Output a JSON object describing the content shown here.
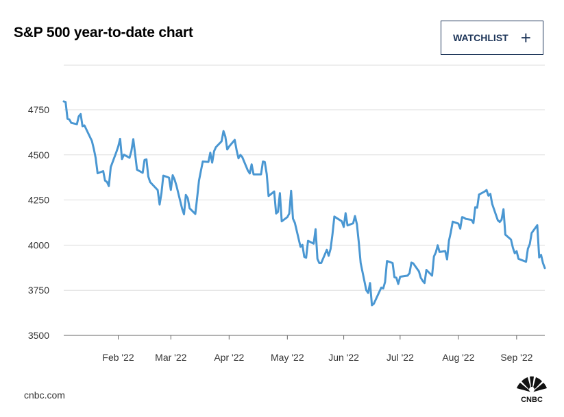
{
  "header": {
    "title": "S&P 500 year-to-date chart",
    "watchlist_label": "WATCHLIST",
    "watchlist_icon": "plus-icon"
  },
  "footer": {
    "source": "cnbc.com",
    "logo_text": "CNBC"
  },
  "colors": {
    "line": "#4a97d2",
    "grid": "#dddddd",
    "axis": "#666666",
    "button_border": "#1c3458"
  },
  "chart_data": {
    "type": "line",
    "title": "S&P 500 year-to-date chart",
    "xlabel": "",
    "ylabel": "",
    "ylim": [
      3500,
      4900
    ],
    "yticks": [
      3500,
      3750,
      4000,
      4250,
      4500,
      4750
    ],
    "grid": true,
    "legend": "none",
    "month_ticks": [
      {
        "label": "Feb '22",
        "date": "2022-02-01"
      },
      {
        "label": "Mar '22",
        "date": "2022-03-01"
      },
      {
        "label": "Apr '22",
        "date": "2022-04-01"
      },
      {
        "label": "May '22",
        "date": "2022-05-02"
      },
      {
        "label": "Jun '22",
        "date": "2022-06-01"
      },
      {
        "label": "Jul '22",
        "date": "2022-07-01"
      },
      {
        "label": "Aug '22",
        "date": "2022-08-01"
      },
      {
        "label": "Sep '22",
        "date": "2022-09-01"
      }
    ],
    "x_range": [
      "2022-01-03",
      "2022-09-16"
    ],
    "series": [
      {
        "points": [
          [
            "2022-01-03",
            4796
          ],
          [
            "2022-01-04",
            4793
          ],
          [
            "2022-01-05",
            4700
          ],
          [
            "2022-01-06",
            4696
          ],
          [
            "2022-01-07",
            4677
          ],
          [
            "2022-01-10",
            4670
          ],
          [
            "2022-01-11",
            4713
          ],
          [
            "2022-01-12",
            4726
          ],
          [
            "2022-01-13",
            4659
          ],
          [
            "2022-01-14",
            4663
          ],
          [
            "2022-01-18",
            4577
          ],
          [
            "2022-01-19",
            4533
          ],
          [
            "2022-01-20",
            4483
          ],
          [
            "2022-01-21",
            4398
          ],
          [
            "2022-01-24",
            4410
          ],
          [
            "2022-01-25",
            4357
          ],
          [
            "2022-01-26",
            4350
          ],
          [
            "2022-01-27",
            4327
          ],
          [
            "2022-01-28",
            4432
          ],
          [
            "2022-01-31",
            4516
          ],
          [
            "2022-02-01",
            4546
          ],
          [
            "2022-02-02",
            4589
          ],
          [
            "2022-02-03",
            4477
          ],
          [
            "2022-02-04",
            4501
          ],
          [
            "2022-02-07",
            4484
          ],
          [
            "2022-02-08",
            4521
          ],
          [
            "2022-02-09",
            4587
          ],
          [
            "2022-02-10",
            4504
          ],
          [
            "2022-02-11",
            4418
          ],
          [
            "2022-02-14",
            4401
          ],
          [
            "2022-02-15",
            4472
          ],
          [
            "2022-02-16",
            4475
          ],
          [
            "2022-02-17",
            4380
          ],
          [
            "2022-02-18",
            4349
          ],
          [
            "2022-02-22",
            4305
          ],
          [
            "2022-02-23",
            4225
          ],
          [
            "2022-02-24",
            4288
          ],
          [
            "2022-02-25",
            4385
          ],
          [
            "2022-02-28",
            4374
          ],
          [
            "2022-03-01",
            4306
          ],
          [
            "2022-03-02",
            4387
          ],
          [
            "2022-03-03",
            4363
          ],
          [
            "2022-03-04",
            4329
          ],
          [
            "2022-03-07",
            4201
          ],
          [
            "2022-03-08",
            4171
          ],
          [
            "2022-03-09",
            4278
          ],
          [
            "2022-03-10",
            4260
          ],
          [
            "2022-03-11",
            4204
          ],
          [
            "2022-03-14",
            4173
          ],
          [
            "2022-03-15",
            4263
          ],
          [
            "2022-03-16",
            4358
          ],
          [
            "2022-03-17",
            4412
          ],
          [
            "2022-03-18",
            4463
          ],
          [
            "2022-03-21",
            4461
          ],
          [
            "2022-03-22",
            4512
          ],
          [
            "2022-03-23",
            4457
          ],
          [
            "2022-03-24",
            4520
          ],
          [
            "2022-03-25",
            4543
          ],
          [
            "2022-03-28",
            4575
          ],
          [
            "2022-03-29",
            4632
          ],
          [
            "2022-03-30",
            4602
          ],
          [
            "2022-03-31",
            4530
          ],
          [
            "2022-04-01",
            4546
          ],
          [
            "2022-04-04",
            4583
          ],
          [
            "2022-04-05",
            4525
          ],
          [
            "2022-04-06",
            4481
          ],
          [
            "2022-04-07",
            4500
          ],
          [
            "2022-04-08",
            4488
          ],
          [
            "2022-04-11",
            4413
          ],
          [
            "2022-04-12",
            4397
          ],
          [
            "2022-04-13",
            4447
          ],
          [
            "2022-04-14",
            4392
          ],
          [
            "2022-04-18",
            4392
          ],
          [
            "2022-04-19",
            4463
          ],
          [
            "2022-04-20",
            4460
          ],
          [
            "2022-04-21",
            4394
          ],
          [
            "2022-04-22",
            4272
          ],
          [
            "2022-04-25",
            4297
          ],
          [
            "2022-04-26",
            4175
          ],
          [
            "2022-04-27",
            4184
          ],
          [
            "2022-04-28",
            4288
          ],
          [
            "2022-04-29",
            4132
          ],
          [
            "2022-05-02",
            4155
          ],
          [
            "2022-05-03",
            4175
          ],
          [
            "2022-05-04",
            4301
          ],
          [
            "2022-05-05",
            4147
          ],
          [
            "2022-05-06",
            4123
          ],
          [
            "2022-05-09",
            3991
          ],
          [
            "2022-05-10",
            4001
          ],
          [
            "2022-05-11",
            3935
          ],
          [
            "2022-05-12",
            3930
          ],
          [
            "2022-05-13",
            4024
          ],
          [
            "2022-05-16",
            4008
          ],
          [
            "2022-05-17",
            4088
          ],
          [
            "2022-05-18",
            3924
          ],
          [
            "2022-05-19",
            3901
          ],
          [
            "2022-05-20",
            3901
          ],
          [
            "2022-05-23",
            3974
          ],
          [
            "2022-05-24",
            3941
          ],
          [
            "2022-05-25",
            3979
          ],
          [
            "2022-05-26",
            4058
          ],
          [
            "2022-05-27",
            4158
          ],
          [
            "2022-05-31",
            4132
          ],
          [
            "2022-06-01",
            4101
          ],
          [
            "2022-06-02",
            4177
          ],
          [
            "2022-06-03",
            4109
          ],
          [
            "2022-06-06",
            4121
          ],
          [
            "2022-06-07",
            4161
          ],
          [
            "2022-06-08",
            4116
          ],
          [
            "2022-06-09",
            4018
          ],
          [
            "2022-06-10",
            3901
          ],
          [
            "2022-06-13",
            3750
          ],
          [
            "2022-06-14",
            3735
          ],
          [
            "2022-06-15",
            3790
          ],
          [
            "2022-06-16",
            3667
          ],
          [
            "2022-06-17",
            3675
          ],
          [
            "2022-06-21",
            3765
          ],
          [
            "2022-06-22",
            3760
          ],
          [
            "2022-06-23",
            3796
          ],
          [
            "2022-06-24",
            3912
          ],
          [
            "2022-06-27",
            3901
          ],
          [
            "2022-06-28",
            3822
          ],
          [
            "2022-06-29",
            3819
          ],
          [
            "2022-06-30",
            3785
          ],
          [
            "2022-07-01",
            3825
          ],
          [
            "2022-07-05",
            3831
          ],
          [
            "2022-07-06",
            3845
          ],
          [
            "2022-07-07",
            3903
          ],
          [
            "2022-07-08",
            3899
          ],
          [
            "2022-07-11",
            3855
          ],
          [
            "2022-07-12",
            3819
          ],
          [
            "2022-07-13",
            3802
          ],
          [
            "2022-07-14",
            3790
          ],
          [
            "2022-07-15",
            3863
          ],
          [
            "2022-07-18",
            3831
          ],
          [
            "2022-07-19",
            3937
          ],
          [
            "2022-07-20",
            3960
          ],
          [
            "2022-07-21",
            3999
          ],
          [
            "2022-07-22",
            3962
          ],
          [
            "2022-07-25",
            3967
          ],
          [
            "2022-07-26",
            3921
          ],
          [
            "2022-07-27",
            4024
          ],
          [
            "2022-07-28",
            4072
          ],
          [
            "2022-07-29",
            4130
          ],
          [
            "2022-08-01",
            4119
          ],
          [
            "2022-08-02",
            4091
          ],
          [
            "2022-08-03",
            4155
          ],
          [
            "2022-08-04",
            4152
          ],
          [
            "2022-08-05",
            4145
          ],
          [
            "2022-08-08",
            4140
          ],
          [
            "2022-08-09",
            4122
          ],
          [
            "2022-08-10",
            4210
          ],
          [
            "2022-08-11",
            4207
          ],
          [
            "2022-08-12",
            4280
          ],
          [
            "2022-08-15",
            4297
          ],
          [
            "2022-08-16",
            4305
          ],
          [
            "2022-08-17",
            4274
          ],
          [
            "2022-08-18",
            4284
          ],
          [
            "2022-08-19",
            4228
          ],
          [
            "2022-08-22",
            4138
          ],
          [
            "2022-08-23",
            4128
          ],
          [
            "2022-08-24",
            4141
          ],
          [
            "2022-08-25",
            4199
          ],
          [
            "2022-08-26",
            4058
          ],
          [
            "2022-08-29",
            4031
          ],
          [
            "2022-08-30",
            3986
          ],
          [
            "2022-08-31",
            3955
          ],
          [
            "2022-09-01",
            3966
          ],
          [
            "2022-09-02",
            3924
          ],
          [
            "2022-09-06",
            3908
          ],
          [
            "2022-09-07",
            3980
          ],
          [
            "2022-09-08",
            4006
          ],
          [
            "2022-09-09",
            4067
          ],
          [
            "2022-09-12",
            4110
          ],
          [
            "2022-09-13",
            3932
          ],
          [
            "2022-09-14",
            3946
          ],
          [
            "2022-09-15",
            3901
          ],
          [
            "2022-09-16",
            3873
          ]
        ]
      }
    ]
  }
}
